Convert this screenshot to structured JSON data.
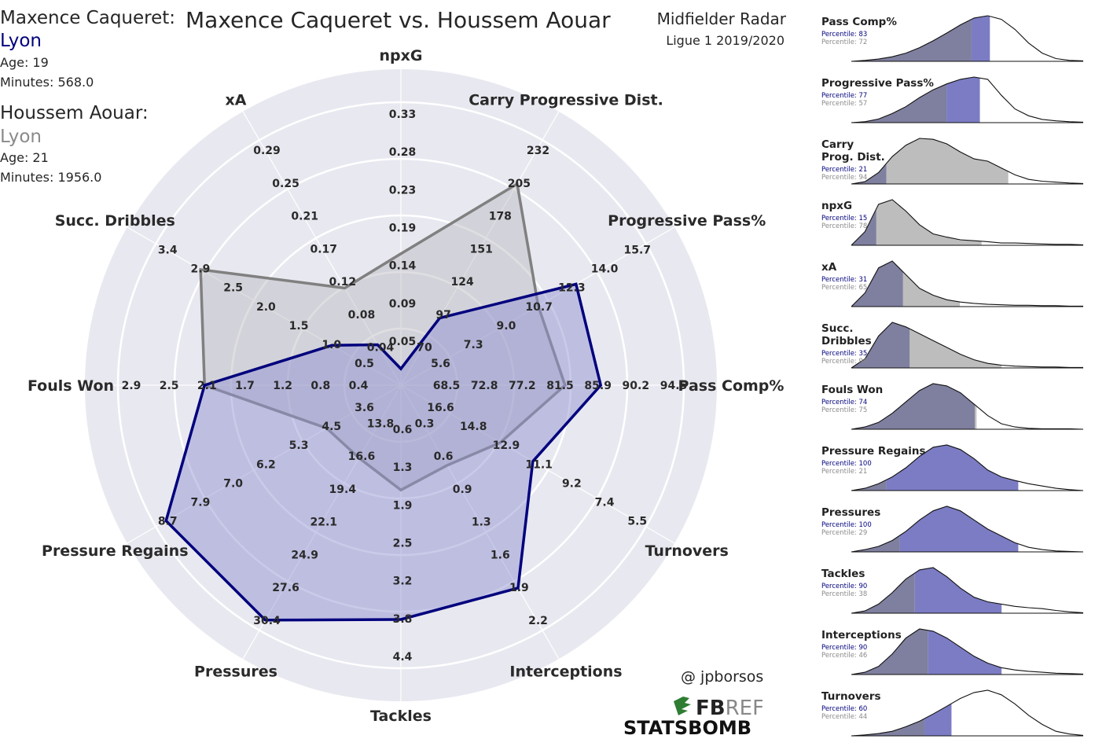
{
  "header": {
    "player1_label": "Maxence Caqueret:",
    "player1_team": "Lyon",
    "player1_age": "Age: 19",
    "player1_minutes": "Minutes: 568.0",
    "player2_label": "Houssem Aouar:",
    "player2_team": "Lyon",
    "player2_age": "Age: 21",
    "player2_minutes": "Minutes: 1956.0",
    "title": "Maxence Caqueret vs. Houssem Aouar",
    "subtitle": "Midfielder Radar",
    "competition": "Ligue 1 2019/2020"
  },
  "credits": {
    "handle": "@ jpborsos",
    "fbref_logo": "FBREF",
    "statsbomb_logo": "STATSBOMB"
  },
  "colors": {
    "player1": "#00007d",
    "player1_fill": "#b9b9dd",
    "player2": "#808080",
    "player2_fill": "#d0d0d8",
    "radar_bg": "#e8e8f0",
    "kde_p1": "#7c7cc4",
    "kde_p2": "#bdbdbd",
    "kde_overlap": "#7f7f9f"
  },
  "chart_data": [
    {
      "type": "radar",
      "title": "Maxence Caqueret vs. Houssem Aouar",
      "axes": [
        {
          "name": "npxG",
          "ticks": [
            "0.05",
            "0.09",
            "0.14",
            "0.19",
            "0.23",
            "0.28",
            "0.33"
          ],
          "min": 0,
          "max": 0.33
        },
        {
          "name": "Carry Progressive Dist.",
          "ticks": [
            "70",
            "97",
            "124",
            "151",
            "178",
            "205",
            "232"
          ],
          "min": 43,
          "max": 232
        },
        {
          "name": "Progressive Pass%",
          "ticks": [
            "5.6",
            "7.3",
            "9.0",
            "10.7",
            "12.3",
            "14.0",
            "15.7"
          ],
          "min": 3.9,
          "max": 15.7
        },
        {
          "name": "Pass Comp%",
          "ticks": [
            "68.5",
            "72.8",
            "77.2",
            "81.5",
            "85.9",
            "90.2",
            "94.5"
          ],
          "min": 64.1,
          "max": 94.5
        },
        {
          "name": "Turnovers",
          "ticks": [
            "16.6",
            "14.8",
            "12.9",
            "11.1",
            "9.2",
            "7.4",
            "5.5"
          ],
          "min": 18.5,
          "max": 5.5
        },
        {
          "name": "Interceptions",
          "ticks": [
            "0.3",
            "0.6",
            "0.9",
            "1.3",
            "1.6",
            "1.9",
            "2.2"
          ],
          "min": 0,
          "max": 2.2
        },
        {
          "name": "Tackles",
          "ticks": [
            "0.6",
            "1.3",
            "1.9",
            "2.5",
            "3.2",
            "3.8",
            "4.4"
          ],
          "min": 0,
          "max": 4.4
        },
        {
          "name": "Pressures",
          "ticks": [
            "13.8",
            "16.6",
            "19.4",
            "22.1",
            "24.9",
            "27.6",
            "30.4"
          ],
          "min": 11,
          "max": 30.4
        },
        {
          "name": "Pressure Regains",
          "ticks": [
            "3.6",
            "4.5",
            "5.3",
            "6.2",
            "7.0",
            "7.9",
            "8.7"
          ],
          "min": 2.7,
          "max": 8.7
        },
        {
          "name": "Fouls Won",
          "ticks": [
            "0.4",
            "0.8",
            "1.2",
            "1.7",
            "2.1",
            "2.5",
            "2.9"
          ],
          "min": 0,
          "max": 2.9
        },
        {
          "name": "Succ. Dribbles",
          "ticks": [
            "0.5",
            "1.0",
            "1.5",
            "2.0",
            "2.5",
            "2.9",
            "3.4"
          ],
          "min": 0,
          "max": 3.4
        },
        {
          "name": "xA",
          "ticks": [
            "0.04",
            "0.08",
            "0.12",
            "0.17",
            "0.21",
            "0.25",
            "0.29"
          ],
          "min": 0,
          "max": 0.29
        }
      ],
      "series": [
        {
          "name": "Maxence Caqueret",
          "values": [
            0.02,
            97,
            12.7,
            86.5,
            11.2,
            1.9,
            3.8,
            30.4,
            8.7,
            2.1,
            1.0,
            0.05
          ]
        },
        {
          "name": "Houssem Aouar",
          "values": [
            0.16,
            205,
            10.8,
            82.5,
            13.0,
            0.75,
            1.7,
            17.0,
            4.6,
            2.1,
            2.9,
            0.12
          ]
        }
      ]
    },
    {
      "type": "area",
      "title": "Percentile distributions",
      "panels": [
        {
          "label": "Pass Comp%",
          "p1_percentile": "Percentile: 83",
          "p2_percentile": "Percentile: 72",
          "p1": 83,
          "p2": 72
        },
        {
          "label": "Progressive Pass%",
          "p1_percentile": "Percentile: 77",
          "p2_percentile": "Percentile: 57",
          "p1": 77,
          "p2": 57
        },
        {
          "label": "Carry\nProg. Dist.",
          "p1_percentile": "Percentile: 21",
          "p2_percentile": "Percentile: 94",
          "p1": 21,
          "p2": 94
        },
        {
          "label": "npxG",
          "p1_percentile": "Percentile: 15",
          "p2_percentile": "Percentile: 78",
          "p1": 15,
          "p2": 78
        },
        {
          "label": "xA",
          "p1_percentile": "Percentile: 31",
          "p2_percentile": "Percentile: 65",
          "p1": 31,
          "p2": 65
        },
        {
          "label": "Succ.\nDribbles",
          "p1_percentile": "Percentile: 35",
          "p2_percentile": "Percentile: 90",
          "p1": 35,
          "p2": 90
        },
        {
          "label": "Fouls Won",
          "p1_percentile": "Percentile: 74",
          "p2_percentile": "Percentile: 75",
          "p1": 74,
          "p2": 75
        },
        {
          "label": "Pressure Regains",
          "p1_percentile": "Percentile: 100",
          "p2_percentile": "Percentile: 21",
          "p1": 100,
          "p2": 21
        },
        {
          "label": "Pressures",
          "p1_percentile": "Percentile: 100",
          "p2_percentile": "Percentile: 29",
          "p1": 100,
          "p2": 29
        },
        {
          "label": "Tackles",
          "p1_percentile": "Percentile: 90",
          "p2_percentile": "Percentile: 38",
          "p1": 90,
          "p2": 38
        },
        {
          "label": "Interceptions",
          "p1_percentile": "Percentile: 90",
          "p2_percentile": "Percentile: 46",
          "p1": 90,
          "p2": 46
        },
        {
          "label": "Turnovers",
          "p1_percentile": "Percentile: 60",
          "p2_percentile": "Percentile: 44",
          "p1": 60,
          "p2": 44
        }
      ]
    }
  ]
}
